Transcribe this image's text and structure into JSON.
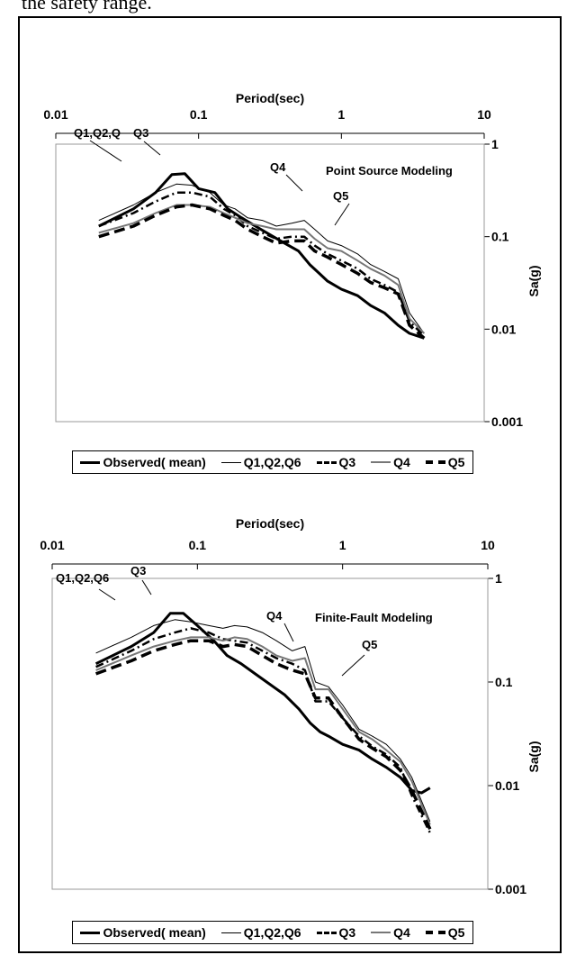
{
  "caption": "the safety range.",
  "legend_labels": [
    "Observed( mean)",
    "Q1,Q2,Q6",
    "Q3",
    "Q4",
    "Q5"
  ],
  "series_styles": [
    {
      "color": "#000000",
      "width": 3,
      "dash": ""
    },
    {
      "color": "#000000",
      "width": 1,
      "dash": ""
    },
    {
      "color": "#000000",
      "width": 2.5,
      "dash": "9 4 2 4"
    },
    {
      "color": "#777777",
      "width": 2,
      "dash": ""
    },
    {
      "color": "#000000",
      "width": 3.5,
      "dash": "12 6"
    }
  ],
  "chart_data": [
    {
      "type": "line",
      "title": "Point Source Modeling",
      "xlabel": "Period(sec)",
      "ylabel": "Sa(g)",
      "xscale": "log",
      "yscale": "log",
      "xlim": [
        0.01,
        10
      ],
      "ylim": [
        0.001,
        1
      ],
      "xticks": [
        "0.01",
        "0.1",
        "1",
        "10"
      ],
      "yticks": [
        "0.001",
        "0.01",
        "0.1",
        "1"
      ],
      "annotations": [
        "Q1,Q2,Q",
        "Q3",
        "Q4",
        "Q5"
      ],
      "series": [
        {
          "name": "Observed( mean)",
          "points": [
            [
              0.02,
              0.13
            ],
            [
              0.035,
              0.2
            ],
            [
              0.05,
              0.3
            ],
            [
              0.065,
              0.47
            ],
            [
              0.08,
              0.48
            ],
            [
              0.1,
              0.33
            ],
            [
              0.13,
              0.3
            ],
            [
              0.16,
              0.2
            ],
            [
              0.2,
              0.16
            ],
            [
              0.25,
              0.13
            ],
            [
              0.3,
              0.11
            ],
            [
              0.4,
              0.085
            ],
            [
              0.5,
              0.07
            ],
            [
              0.6,
              0.05
            ],
            [
              0.7,
              0.04
            ],
            [
              0.8,
              0.033
            ],
            [
              1.0,
              0.027
            ],
            [
              1.3,
              0.023
            ],
            [
              1.6,
              0.018
            ],
            [
              2.0,
              0.015
            ],
            [
              2.5,
              0.011
            ],
            [
              3.0,
              0.009
            ],
            [
              3.8,
              0.008
            ]
          ]
        },
        {
          "name": "Q1,Q2,Q6",
          "points": [
            [
              0.02,
              0.15
            ],
            [
              0.035,
              0.22
            ],
            [
              0.05,
              0.3
            ],
            [
              0.07,
              0.37
            ],
            [
              0.09,
              0.36
            ],
            [
              0.12,
              0.3
            ],
            [
              0.15,
              0.22
            ],
            [
              0.18,
              0.2
            ],
            [
              0.22,
              0.16
            ],
            [
              0.28,
              0.15
            ],
            [
              0.35,
              0.13
            ],
            [
              0.45,
              0.14
            ],
            [
              0.55,
              0.15
            ],
            [
              0.65,
              0.12
            ],
            [
              0.8,
              0.09
            ],
            [
              1.0,
              0.08
            ],
            [
              1.3,
              0.065
            ],
            [
              1.6,
              0.05
            ],
            [
              2.0,
              0.042
            ],
            [
              2.5,
              0.035
            ],
            [
              3.0,
              0.015
            ],
            [
              3.8,
              0.009
            ]
          ]
        },
        {
          "name": "Q3",
          "points": [
            [
              0.02,
              0.13
            ],
            [
              0.035,
              0.18
            ],
            [
              0.05,
              0.24
            ],
            [
              0.07,
              0.3
            ],
            [
              0.09,
              0.3
            ],
            [
              0.12,
              0.27
            ],
            [
              0.15,
              0.2
            ],
            [
              0.18,
              0.17
            ],
            [
              0.22,
              0.13
            ],
            [
              0.28,
              0.11
            ],
            [
              0.35,
              0.095
            ],
            [
              0.45,
              0.1
            ],
            [
              0.55,
              0.1
            ],
            [
              0.65,
              0.08
            ],
            [
              0.8,
              0.065
            ],
            [
              1.0,
              0.055
            ],
            [
              1.3,
              0.045
            ],
            [
              1.6,
              0.035
            ],
            [
              2.0,
              0.03
            ],
            [
              2.5,
              0.025
            ],
            [
              3.0,
              0.012
            ],
            [
              3.8,
              0.0085
            ]
          ]
        },
        {
          "name": "Q4",
          "points": [
            [
              0.02,
              0.11
            ],
            [
              0.035,
              0.14
            ],
            [
              0.05,
              0.18
            ],
            [
              0.07,
              0.22
            ],
            [
              0.09,
              0.22
            ],
            [
              0.12,
              0.21
            ],
            [
              0.15,
              0.18
            ],
            [
              0.18,
              0.16
            ],
            [
              0.22,
              0.14
            ],
            [
              0.28,
              0.13
            ],
            [
              0.35,
              0.12
            ],
            [
              0.45,
              0.12
            ],
            [
              0.55,
              0.12
            ],
            [
              0.65,
              0.095
            ],
            [
              0.8,
              0.075
            ],
            [
              1.0,
              0.07
            ],
            [
              1.3,
              0.055
            ],
            [
              1.6,
              0.045
            ],
            [
              2.0,
              0.038
            ],
            [
              2.5,
              0.03
            ],
            [
              3.0,
              0.013
            ],
            [
              3.8,
              0.009
            ]
          ]
        },
        {
          "name": "Q5",
          "points": [
            [
              0.02,
              0.1
            ],
            [
              0.035,
              0.13
            ],
            [
              0.05,
              0.17
            ],
            [
              0.07,
              0.21
            ],
            [
              0.09,
              0.22
            ],
            [
              0.12,
              0.2
            ],
            [
              0.15,
              0.17
            ],
            [
              0.18,
              0.15
            ],
            [
              0.22,
              0.12
            ],
            [
              0.28,
              0.1
            ],
            [
              0.35,
              0.085
            ],
            [
              0.45,
              0.09
            ],
            [
              0.55,
              0.09
            ],
            [
              0.65,
              0.07
            ],
            [
              0.8,
              0.06
            ],
            [
              1.0,
              0.05
            ],
            [
              1.3,
              0.04
            ],
            [
              1.6,
              0.032
            ],
            [
              2.0,
              0.028
            ],
            [
              2.5,
              0.024
            ],
            [
              3.0,
              0.011
            ],
            [
              3.8,
              0.008
            ]
          ]
        }
      ]
    },
    {
      "type": "line",
      "title": "Finite-Fault Modeling",
      "xlabel": "Period(sec)",
      "ylabel": "Sa(g)",
      "xscale": "log",
      "yscale": "log",
      "xlim": [
        0.01,
        10
      ],
      "ylim": [
        0.001,
        1
      ],
      "xticks": [
        "0.01",
        "0.1",
        "1",
        "10"
      ],
      "yticks": [
        "0.001",
        "0.01",
        "0.1",
        "1"
      ],
      "annotations": [
        "Q1,Q2,Q6",
        "Q3",
        "Q4",
        "Q5"
      ],
      "series": [
        {
          "name": "Observed( mean)",
          "points": [
            [
              0.02,
              0.15
            ],
            [
              0.035,
              0.22
            ],
            [
              0.05,
              0.3
            ],
            [
              0.065,
              0.46
            ],
            [
              0.08,
              0.46
            ],
            [
              0.1,
              0.35
            ],
            [
              0.13,
              0.25
            ],
            [
              0.16,
              0.18
            ],
            [
              0.2,
              0.15
            ],
            [
              0.25,
              0.12
            ],
            [
              0.3,
              0.1
            ],
            [
              0.4,
              0.075
            ],
            [
              0.5,
              0.055
            ],
            [
              0.6,
              0.04
            ],
            [
              0.7,
              0.033
            ],
            [
              0.8,
              0.03
            ],
            [
              1.0,
              0.025
            ],
            [
              1.3,
              0.022
            ],
            [
              1.6,
              0.018
            ],
            [
              2.0,
              0.015
            ],
            [
              2.5,
              0.012
            ],
            [
              3.0,
              0.009
            ],
            [
              3.5,
              0.0085
            ],
            [
              4.0,
              0.0095
            ]
          ]
        },
        {
          "name": "Q1,Q2,Q6",
          "points": [
            [
              0.02,
              0.19
            ],
            [
              0.035,
              0.27
            ],
            [
              0.05,
              0.35
            ],
            [
              0.07,
              0.4
            ],
            [
              0.09,
              0.38
            ],
            [
              0.12,
              0.35
            ],
            [
              0.15,
              0.33
            ],
            [
              0.18,
              0.35
            ],
            [
              0.22,
              0.34
            ],
            [
              0.28,
              0.3
            ],
            [
              0.35,
              0.25
            ],
            [
              0.45,
              0.2
            ],
            [
              0.55,
              0.22
            ],
            [
              0.65,
              0.1
            ],
            [
              0.8,
              0.09
            ],
            [
              1.0,
              0.06
            ],
            [
              1.3,
              0.035
            ],
            [
              1.6,
              0.03
            ],
            [
              2.0,
              0.025
            ],
            [
              2.5,
              0.018
            ],
            [
              3.0,
              0.012
            ],
            [
              4.0,
              0.0045
            ]
          ]
        },
        {
          "name": "Q3",
          "points": [
            [
              0.02,
              0.14
            ],
            [
              0.035,
              0.2
            ],
            [
              0.05,
              0.26
            ],
            [
              0.07,
              0.3
            ],
            [
              0.09,
              0.33
            ],
            [
              0.12,
              0.3
            ],
            [
              0.15,
              0.26
            ],
            [
              0.18,
              0.25
            ],
            [
              0.22,
              0.24
            ],
            [
              0.28,
              0.2
            ],
            [
              0.35,
              0.17
            ],
            [
              0.45,
              0.15
            ],
            [
              0.55,
              0.13
            ],
            [
              0.65,
              0.065
            ],
            [
              0.8,
              0.065
            ],
            [
              1.0,
              0.045
            ],
            [
              1.3,
              0.03
            ],
            [
              1.6,
              0.024
            ],
            [
              2.0,
              0.02
            ],
            [
              2.5,
              0.015
            ],
            [
              3.0,
              0.008
            ],
            [
              4.0,
              0.0035
            ]
          ]
        },
        {
          "name": "Q4",
          "points": [
            [
              0.02,
              0.13
            ],
            [
              0.035,
              0.18
            ],
            [
              0.05,
              0.22
            ],
            [
              0.07,
              0.25
            ],
            [
              0.09,
              0.27
            ],
            [
              0.12,
              0.27
            ],
            [
              0.15,
              0.25
            ],
            [
              0.18,
              0.27
            ],
            [
              0.22,
              0.26
            ],
            [
              0.28,
              0.22
            ],
            [
              0.35,
              0.18
            ],
            [
              0.45,
              0.16
            ],
            [
              0.55,
              0.17
            ],
            [
              0.65,
              0.085
            ],
            [
              0.8,
              0.085
            ],
            [
              1.0,
              0.055
            ],
            [
              1.3,
              0.033
            ],
            [
              1.6,
              0.028
            ],
            [
              2.0,
              0.022
            ],
            [
              2.5,
              0.017
            ],
            [
              3.0,
              0.011
            ],
            [
              4.0,
              0.0042
            ]
          ]
        },
        {
          "name": "Q5",
          "points": [
            [
              0.02,
              0.12
            ],
            [
              0.035,
              0.16
            ],
            [
              0.05,
              0.2
            ],
            [
              0.07,
              0.23
            ],
            [
              0.09,
              0.25
            ],
            [
              0.12,
              0.25
            ],
            [
              0.15,
              0.22
            ],
            [
              0.18,
              0.23
            ],
            [
              0.22,
              0.22
            ],
            [
              0.28,
              0.18
            ],
            [
              0.35,
              0.15
            ],
            [
              0.45,
              0.13
            ],
            [
              0.55,
              0.12
            ],
            [
              0.65,
              0.07
            ],
            [
              0.8,
              0.07
            ],
            [
              1.0,
              0.045
            ],
            [
              1.3,
              0.028
            ],
            [
              1.6,
              0.023
            ],
            [
              2.0,
              0.019
            ],
            [
              2.5,
              0.014
            ],
            [
              3.0,
              0.009
            ],
            [
              4.0,
              0.0038
            ]
          ]
        }
      ]
    }
  ]
}
